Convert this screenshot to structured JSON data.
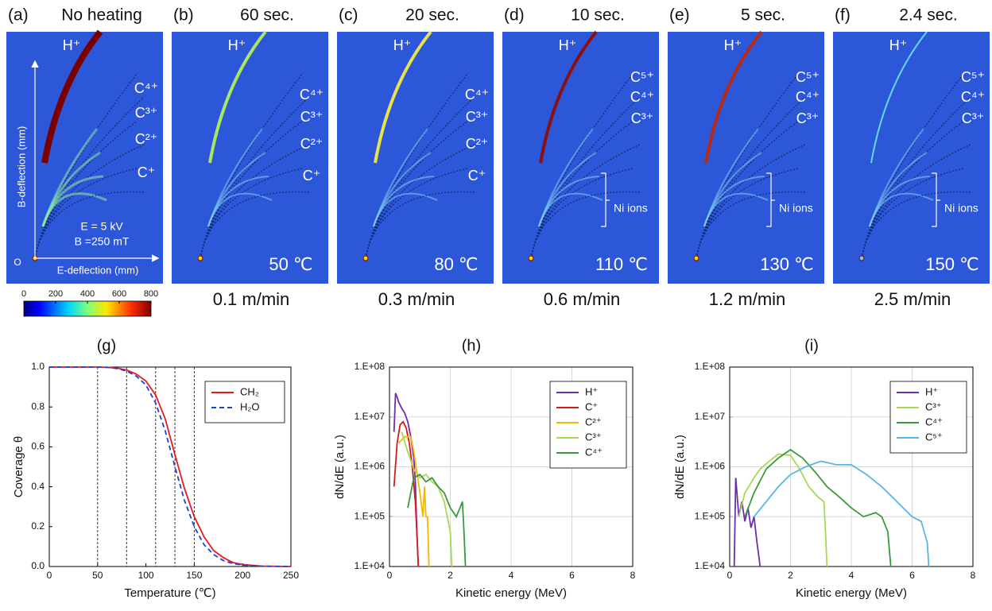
{
  "panels": [
    {
      "label": "(a)",
      "title": "No heating",
      "ions": [
        "H⁺",
        "C⁴⁺",
        "C³⁺",
        "C²⁺",
        "C⁺"
      ],
      "annotations": [
        "E = 5 kV",
        "B =250 mT"
      ],
      "axes": [
        "B-deflection (mm)",
        "E-deflection (mm)",
        "O"
      ]
    },
    {
      "label": "(b)",
      "title": "60 sec.",
      "ions": [
        "H⁺",
        "C⁴⁺",
        "C³⁺",
        "C²⁺",
        "C⁺"
      ],
      "temperature": "50 ℃",
      "speed": "0.1 m/min"
    },
    {
      "label": "(c)",
      "title": "20 sec.",
      "ions": [
        "H⁺",
        "C⁴⁺",
        "C³⁺",
        "C²⁺",
        "C⁺"
      ],
      "temperature": "80 ℃",
      "speed": "0.3 m/min"
    },
    {
      "label": "(d)",
      "title": "10 sec.",
      "ions": [
        "H⁺",
        "C⁵⁺",
        "C⁴⁺",
        "C³⁺"
      ],
      "ni_label": "Ni ions",
      "temperature": "110 ℃",
      "speed": "0.6 m/min"
    },
    {
      "label": "(e)",
      "title": "5 sec.",
      "ions": [
        "H⁺",
        "C⁵⁺",
        "C⁴⁺",
        "C³⁺"
      ],
      "ni_label": "Ni ions",
      "temperature": "130 ℃",
      "speed": "1.2 m/min"
    },
    {
      "label": "(f)",
      "title": "2.4 sec.",
      "ions": [
        "H⁺",
        "C⁵⁺",
        "C⁴⁺",
        "C³⁺"
      ],
      "ni_label": "Ni ions",
      "temperature": "150 ℃",
      "speed": "2.5 m/min"
    }
  ],
  "colorbar": {
    "lim": [
      0,
      800
    ],
    "ticks": [
      0,
      200,
      400,
      600,
      800
    ]
  },
  "chart_data": [
    {
      "type": "line",
      "title": "(g)",
      "xlabel": "Temperature (℃)",
      "ylabel": "Coverage θ",
      "grid": false,
      "legend": "upper right",
      "xlim": [
        0,
        250
      ],
      "xticks": [
        0,
        50,
        100,
        150,
        200,
        250
      ],
      "ylim": [
        0,
        1
      ],
      "yticks": [
        {
          "value": 0,
          "label": "0.0"
        },
        0.2,
        0.4,
        0.6,
        0.8,
        {
          "value": 1,
          "label": "1.0"
        }
      ],
      "vlines": [
        50,
        80,
        110,
        130,
        150
      ],
      "x": [
        0,
        25,
        50,
        60,
        70,
        80,
        90,
        100,
        110,
        120,
        130,
        140,
        150,
        160,
        170,
        180,
        190,
        200,
        220,
        250
      ],
      "series": [
        {
          "name": "CH₂",
          "color": "#e41a1c",
          "dash": false,
          "values": [
            1,
            1,
            1,
            0.999,
            0.995,
            0.985,
            0.965,
            0.93,
            0.86,
            0.74,
            0.56,
            0.39,
            0.25,
            0.15,
            0.08,
            0.045,
            0.02,
            0.01,
            0.002,
            0
          ]
        },
        {
          "name": "H₂O",
          "color": "#1f3fd6",
          "dash": true,
          "values": [
            1,
            1,
            1,
            0.999,
            0.993,
            0.98,
            0.955,
            0.91,
            0.82,
            0.68,
            0.5,
            0.33,
            0.2,
            0.11,
            0.06,
            0.03,
            0.015,
            0.007,
            0.001,
            0
          ]
        }
      ]
    },
    {
      "type": "line",
      "title": "(h)",
      "xlabel": "Kinetic energy (MeV)",
      "ylabel": "dN/dE (a.u.)",
      "grid": true,
      "log_y": true,
      "legend": "upper right",
      "xlim": [
        0,
        8
      ],
      "xticks": [
        0,
        2,
        4,
        6,
        8
      ],
      "ylim": [
        10000,
        100000000
      ],
      "yticks": [
        {
          "value": 10000,
          "label": "1.E+04"
        },
        {
          "value": 100000,
          "label": "1.E+05"
        },
        {
          "value": 1000000,
          "label": "1.E+06"
        },
        {
          "value": 10000000,
          "label": "1.E+07"
        },
        {
          "value": 100000000,
          "label": "1.E+08"
        }
      ],
      "series": [
        {
          "name": "H⁺",
          "color": "#6a2fb0",
          "x": [
            0.15,
            0.2,
            0.25,
            0.3,
            0.4,
            0.5,
            0.6,
            0.7,
            0.8,
            0.85,
            0.9,
            0.95
          ],
          "values": [
            5000000,
            30000000,
            25000000,
            20000000,
            15000000,
            12000000,
            8000000,
            4000000,
            1500000,
            500000,
            50000,
            10000
          ]
        },
        {
          "name": "C⁺",
          "color": "#d7191c",
          "x": [
            0.15,
            0.25,
            0.35,
            0.45,
            0.55,
            0.65,
            0.75,
            0.85,
            0.9,
            0.95
          ],
          "values": [
            400000,
            3000000,
            7000000,
            8000000,
            6000000,
            3000000,
            1000000,
            200000,
            50000,
            10000
          ]
        },
        {
          "name": "C²⁺",
          "color": "#f5b800",
          "x": [
            0.3,
            0.5,
            0.7,
            0.8,
            0.9,
            1.0,
            1.1,
            1.15,
            1.2,
            1.25,
            1.3
          ],
          "values": [
            3000000,
            4000000,
            4000000,
            2000000,
            800000,
            300000,
            100000,
            400000,
            100000,
            100000,
            10000
          ]
        },
        {
          "name": "C³⁺",
          "color": "#a6d854",
          "x": [
            0.4,
            0.6,
            0.8,
            1.0,
            1.2,
            1.4,
            1.6,
            1.8,
            1.9,
            2.0,
            2.05
          ],
          "values": [
            5000000,
            2000000,
            900000,
            600000,
            700000,
            500000,
            400000,
            200000,
            100000,
            50000,
            10000
          ]
        },
        {
          "name": "C⁴⁺",
          "color": "#3a9a3a",
          "x": [
            0.6,
            0.8,
            1.0,
            1.2,
            1.4,
            1.6,
            1.8,
            2.0,
            2.2,
            2.4,
            2.45,
            2.5
          ],
          "values": [
            150000,
            600000,
            700000,
            500000,
            600000,
            400000,
            300000,
            150000,
            100000,
            200000,
            50000,
            10000
          ]
        }
      ]
    },
    {
      "type": "line",
      "title": "(i)",
      "xlabel": "Kinetic energy (MeV)",
      "ylabel": "dN/dE (a.u.)",
      "grid": true,
      "log_y": true,
      "legend": "upper right",
      "xlim": [
        0,
        8
      ],
      "xticks": [
        0,
        2,
        4,
        6,
        8
      ],
      "ylim": [
        10000,
        100000000
      ],
      "yticks": [
        {
          "value": 10000,
          "label": "1.E+04"
        },
        {
          "value": 100000,
          "label": "1.E+05"
        },
        {
          "value": 1000000,
          "label": "1.E+06"
        },
        {
          "value": 10000000,
          "label": "1.E+07"
        },
        {
          "value": 100000000,
          "label": "1.E+08"
        }
      ],
      "series": [
        {
          "name": "H⁺",
          "color": "#6a2fb0",
          "x": [
            0.15,
            0.2,
            0.3,
            0.4,
            0.5,
            0.6,
            0.7,
            0.8,
            0.9,
            1.0
          ],
          "values": [
            10000,
            600000,
            100000,
            200000,
            80000,
            150000,
            60000,
            100000,
            30000,
            10000
          ]
        },
        {
          "name": "C³⁺",
          "color": "#a6d854",
          "x": [
            0.3,
            0.5,
            0.8,
            1.0,
            1.3,
            1.6,
            2.0,
            2.3,
            2.6,
            2.9,
            3.1,
            3.15,
            3.2
          ],
          "values": [
            100000,
            300000,
            600000,
            900000,
            1300000,
            1800000,
            1700000,
            900000,
            400000,
            250000,
            200000,
            50000,
            10000
          ]
        },
        {
          "name": "C⁴⁺",
          "color": "#3a9a3a",
          "x": [
            0.5,
            0.8,
            1.2,
            1.6,
            2.0,
            2.4,
            2.8,
            3.2,
            3.6,
            4.0,
            4.4,
            4.8,
            5.0,
            5.2,
            5.3
          ],
          "values": [
            100000,
            300000,
            900000,
            1500000,
            2200000,
            1500000,
            800000,
            400000,
            250000,
            150000,
            100000,
            120000,
            100000,
            50000,
            10000
          ]
        },
        {
          "name": "C⁵⁺",
          "color": "#5ab4e5",
          "x": [
            0.8,
            1.2,
            1.6,
            2.0,
            2.5,
            3.0,
            3.5,
            4.0,
            4.5,
            5.0,
            5.5,
            6.0,
            6.3,
            6.5,
            6.55
          ],
          "values": [
            100000,
            200000,
            400000,
            700000,
            1000000,
            1300000,
            1100000,
            1100000,
            700000,
            400000,
            200000,
            100000,
            80000,
            30000,
            10000
          ]
        }
      ]
    }
  ]
}
